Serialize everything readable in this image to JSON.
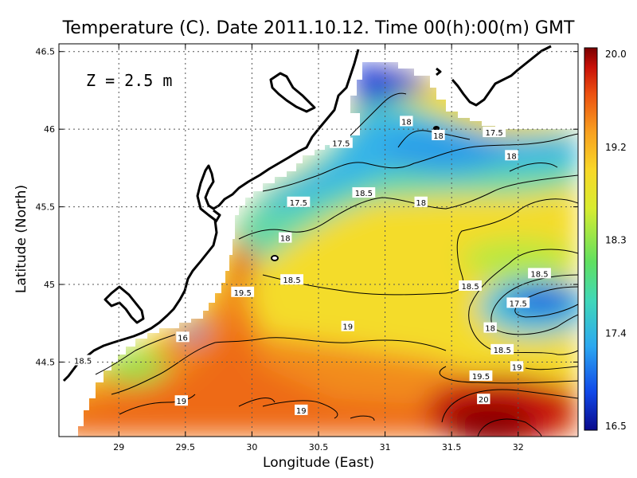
{
  "chart_data": {
    "type": "heatmap",
    "title": "Temperature (C). Date 2011.10.12. Time 00(h):00(m) GMT",
    "annotation": "Z = 2.5 m",
    "xlabel": "Longitude (East)",
    "ylabel": "Latitude (North)",
    "xlim": [
      28.55,
      32.45
    ],
    "ylim": [
      44.02,
      46.55
    ],
    "x_ticks": [
      "29",
      "29.5",
      "30",
      "30.5",
      "31",
      "31.5",
      "32"
    ],
    "y_ticks": [
      "44.5",
      "45",
      "45.5",
      "46",
      "46.5"
    ],
    "grid": true,
    "colorbar": {
      "ticks": [
        "16.5",
        "17.4",
        "18.3",
        "19.2",
        "20.0"
      ],
      "range": [
        16.5,
        20.0
      ],
      "colors": [
        "#0a0a8c",
        "#1048e8",
        "#2ca8f0",
        "#40d8b8",
        "#60e060",
        "#d8ec30",
        "#f8d828",
        "#f8a020",
        "#ec5010",
        "#c81008",
        "#7a0000"
      ]
    },
    "contour_labels": [
      {
        "text": "18",
        "lon": 31.16,
        "lat": 46.05
      },
      {
        "text": "18",
        "lon": 31.4,
        "lat": 45.96
      },
      {
        "text": "17.5",
        "lon": 31.82,
        "lat": 45.98
      },
      {
        "text": "17.5",
        "lon": 30.67,
        "lat": 45.91
      },
      {
        "text": "18",
        "lon": 31.95,
        "lat": 45.83
      },
      {
        "text": "18.5",
        "lon": 30.84,
        "lat": 45.59
      },
      {
        "text": "18",
        "lon": 31.27,
        "lat": 45.53
      },
      {
        "text": "17.5",
        "lon": 30.35,
        "lat": 45.53
      },
      {
        "text": "18",
        "lon": 30.25,
        "lat": 45.3
      },
      {
        "text": "18.5",
        "lon": 30.3,
        "lat": 45.03
      },
      {
        "text": "18.5",
        "lon": 31.64,
        "lat": 44.99
      },
      {
        "text": "18.5",
        "lon": 32.16,
        "lat": 45.07
      },
      {
        "text": "17.5",
        "lon": 32.0,
        "lat": 44.88
      },
      {
        "text": "19.5",
        "lon": 29.93,
        "lat": 44.95
      },
      {
        "text": "18",
        "lon": 31.79,
        "lat": 44.72
      },
      {
        "text": "18.5",
        "lon": 31.88,
        "lat": 44.58
      },
      {
        "text": "19",
        "lon": 30.72,
        "lat": 44.73
      },
      {
        "text": "19",
        "lon": 31.99,
        "lat": 44.47
      },
      {
        "text": "16",
        "lon": 29.48,
        "lat": 44.66
      },
      {
        "text": "18.5",
        "lon": 28.73,
        "lat": 44.51
      },
      {
        "text": "19.5",
        "lon": 31.72,
        "lat": 44.41
      },
      {
        "text": "20",
        "lon": 31.74,
        "lat": 44.26
      },
      {
        "text": "19",
        "lon": 29.47,
        "lat": 44.25
      },
      {
        "text": "19",
        "lon": 30.37,
        "lat": 44.19
      }
    ]
  }
}
